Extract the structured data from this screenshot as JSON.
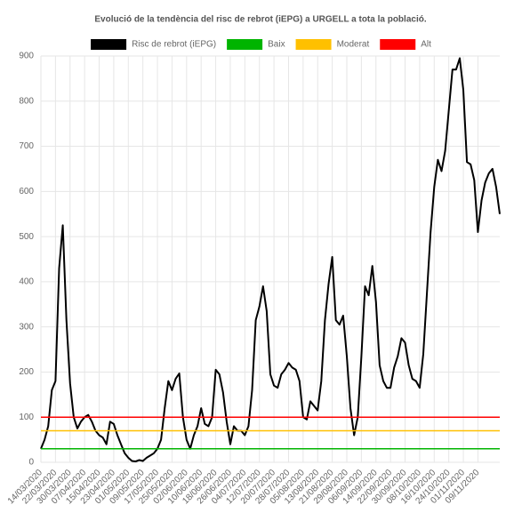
{
  "chart_data": {
    "type": "line",
    "title": "Evolució de la tendència del risc de rebrot (iEPG) a URGELL a tota la població.",
    "categories": [
      "14/03/2020",
      null,
      null,
      null,
      "22/03/2020",
      null,
      null,
      null,
      "30/03/2020",
      null,
      null,
      null,
      "07/04/2020",
      null,
      null,
      null,
      "15/04/2020",
      null,
      null,
      null,
      "23/04/2020",
      null,
      null,
      null,
      "01/05/2020",
      null,
      null,
      null,
      "09/05/2020",
      null,
      null,
      null,
      "17/05/2020",
      null,
      null,
      null,
      "25/05/2020",
      null,
      null,
      null,
      "02/06/2020",
      null,
      null,
      null,
      "10/06/2020",
      null,
      null,
      null,
      "18/06/2020",
      null,
      null,
      null,
      "26/06/2020",
      null,
      null,
      null,
      "04/07/2020",
      null,
      null,
      null,
      "12/07/2020",
      null,
      null,
      null,
      "20/07/2020",
      null,
      null,
      null,
      "28/07/2020",
      null,
      null,
      null,
      "05/08/2020",
      null,
      null,
      null,
      "13/08/2020",
      null,
      null,
      null,
      "21/08/2020",
      null,
      null,
      null,
      "29/08/2020",
      null,
      null,
      null,
      "06/09/2020",
      null,
      null,
      null,
      "14/09/2020",
      null,
      null,
      null,
      "22/09/2020",
      null,
      null,
      null,
      "30/09/2020",
      null,
      null,
      null,
      "08/10/2020",
      null,
      null,
      null,
      "16/10/2020",
      null,
      null,
      null,
      "24/10/2020",
      null,
      null,
      null,
      "01/11/2020",
      null,
      null,
      null,
      "09/11/2020",
      null,
      null,
      null,
      null,
      null,
      null
    ],
    "series": [
      {
        "name": "Risc de rebrot (iEPG)",
        "color": "#000000",
        "values": [
          30,
          50,
          80,
          160,
          180,
          430,
          525,
          315,
          175,
          100,
          75,
          90,
          100,
          105,
          90,
          70,
          60,
          55,
          40,
          90,
          85,
          60,
          40,
          20,
          10,
          3,
          2,
          5,
          3,
          10,
          15,
          20,
          30,
          50,
          120,
          180,
          160,
          185,
          197,
          100,
          50,
          30,
          60,
          80,
          120,
          85,
          80,
          100,
          205,
          195,
          155,
          90,
          40,
          80,
          70,
          70,
          60,
          80,
          160,
          315,
          345,
          390,
          335,
          195,
          170,
          165,
          195,
          205,
          220,
          210,
          205,
          180,
          100,
          95,
          135,
          125,
          115,
          180,
          315,
          395,
          455,
          315,
          305,
          325,
          235,
          120,
          60,
          100,
          235,
          390,
          370,
          435,
          355,
          215,
          180,
          165,
          165,
          210,
          235,
          275,
          265,
          215,
          185,
          180,
          165,
          240,
          375,
          510,
          610,
          670,
          645,
          690,
          780,
          870,
          870,
          895,
          825,
          665,
          660,
          625,
          510,
          580,
          620,
          640,
          650,
          610,
          550
        ]
      },
      {
        "name": "Baix",
        "color": "#00b400",
        "value": 30
      },
      {
        "name": "Moderat",
        "color": "#ffc000",
        "value": 70
      },
      {
        "name": "Alt",
        "color": "#ff0000",
        "value": 100
      }
    ],
    "ylim": [
      0,
      900
    ],
    "yticks": [
      0,
      100,
      200,
      300,
      400,
      500,
      600,
      700,
      800,
      900
    ],
    "grid": true
  }
}
